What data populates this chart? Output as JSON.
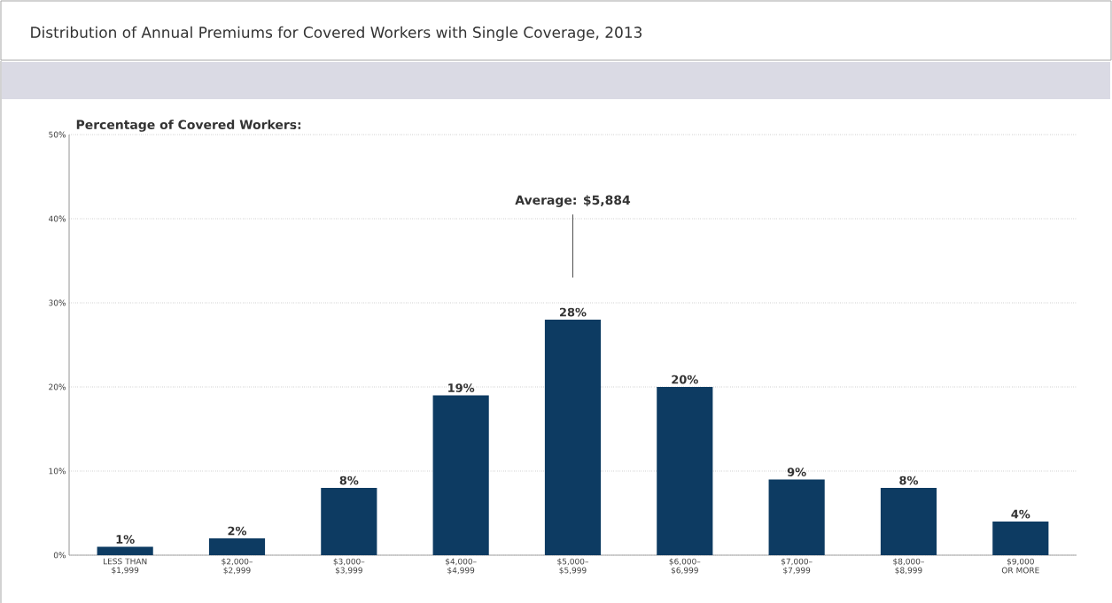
{
  "chart_data": {
    "type": "bar",
    "title": "Distribution of Annual Premiums for Covered Workers with Single Coverage, 2013",
    "ylabel": "Percentage of Covered Workers:",
    "categories": [
      "LESS THAN $1,999",
      "$2,000– $2,999",
      "$3,000– $3,999",
      "$4,000– $4,999",
      "$5,000– $5,999",
      "$6,000– $6,999",
      "$7,000– $7,999",
      "$8,000– $8,999",
      "$9,000 OR MORE"
    ],
    "values": [
      1,
      2,
      8,
      19,
      28,
      20,
      9,
      8,
      4
    ],
    "value_labels": [
      "1%",
      "2%",
      "8%",
      "19%",
      "28%",
      "20%",
      "9%",
      "8%",
      "4%"
    ],
    "color": "#0d3b62",
    "ylim": [
      0,
      50
    ],
    "yticks": [
      {
        "value": 0,
        "label": "0%"
      },
      {
        "value": 10,
        "label": "10%"
      },
      {
        "value": 20,
        "label": "20%"
      },
      {
        "value": 30,
        "label": "30%"
      },
      {
        "value": 40,
        "label": "40%"
      },
      {
        "value": 50,
        "label": "50%"
      }
    ],
    "grid": "y",
    "annotations": [
      "Average: $5,884"
    ]
  }
}
